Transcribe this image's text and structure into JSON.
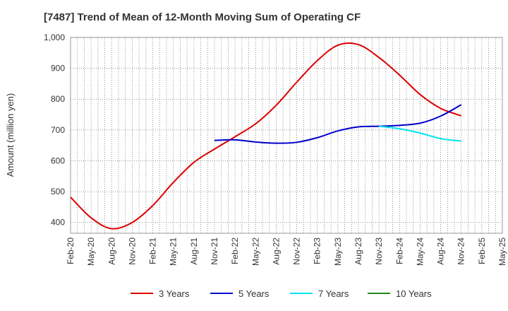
{
  "chart_data": {
    "type": "line",
    "title": "[7487]  Trend of Mean of 12-Month Moving Sum of Operating CF",
    "xlabel": "",
    "ylabel": "Amount (million yen)",
    "ylim": [
      365,
      1000
    ],
    "yticks": [
      400,
      500,
      600,
      700,
      800,
      900,
      1000
    ],
    "ytick_labels": [
      "400",
      "500",
      "600",
      "700",
      "800",
      "900",
      "1,000"
    ],
    "grid": true,
    "legend_position": "bottom",
    "categories": [
      "Feb-20",
      "May-20",
      "Aug-20",
      "Nov-20",
      "Feb-21",
      "May-21",
      "Aug-21",
      "Nov-21",
      "Feb-22",
      "May-22",
      "Aug-22",
      "Nov-22",
      "Feb-23",
      "May-23",
      "Aug-23",
      "Nov-23",
      "Feb-24",
      "May-24",
      "Aug-24",
      "Nov-24",
      "Feb-25",
      "May-25"
    ],
    "series": [
      {
        "name": "3 Years",
        "color": "#dd0000",
        "values": [
          482,
          415,
          380,
          400,
          455,
          530,
          595,
          638,
          678,
          720,
          780,
          855,
          925,
          975,
          977,
          935,
          878,
          815,
          770,
          746,
          null,
          null
        ]
      },
      {
        "name": "5 Years",
        "color": "#0000cc",
        "values": [
          null,
          null,
          null,
          null,
          null,
          null,
          null,
          666,
          668,
          661,
          657,
          660,
          675,
          697,
          710,
          712,
          715,
          722,
          745,
          782,
          null,
          null
        ]
      },
      {
        "name": "7 Years",
        "color": "#00e5ee",
        "values": [
          null,
          null,
          null,
          null,
          null,
          null,
          null,
          null,
          null,
          null,
          null,
          null,
          null,
          null,
          null,
          712,
          704,
          690,
          672,
          664,
          null,
          null
        ]
      },
      {
        "name": "10 Years",
        "color": "#228b22",
        "values": [
          null,
          null,
          null,
          null,
          null,
          null,
          null,
          null,
          null,
          null,
          null,
          null,
          null,
          null,
          null,
          null,
          null,
          null,
          null,
          null,
          null,
          null
        ]
      }
    ]
  }
}
